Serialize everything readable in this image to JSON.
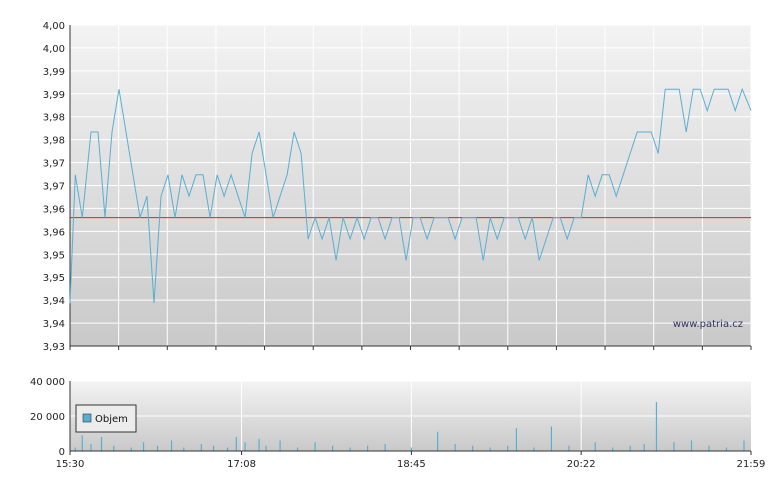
{
  "watermark": "www.patria.cz",
  "colors": {
    "price_line": "#5aaed4",
    "reference_line": "#dd2222",
    "volume_bar": "#5aaed4",
    "grid": "#ffffff",
    "plot_bg_top": "#f2f2f2",
    "plot_bg_bottom": "#c8c8c8",
    "axis": "#333333"
  },
  "chart_data": [
    {
      "type": "line",
      "name": "price",
      "y_tick_labels": [
        "3,93",
        "3,94",
        "3,94",
        "3,95",
        "3,95",
        "3,96",
        "3,96",
        "3,97",
        "3,97",
        "3,98",
        "3,98",
        "3,99",
        "3,99",
        "4,00",
        "4,00"
      ],
      "ylim": [
        3.93,
        4.005
      ],
      "reference_value": 3.96,
      "x_tick_labels": [
        "15:30",
        "17:08",
        "18:45",
        "20:22",
        "21:59"
      ],
      "x_range": [
        "15:30",
        "21:59"
      ],
      "x": [
        "15:30",
        "15:33",
        "15:37",
        "15:42",
        "15:46",
        "15:50",
        "15:54",
        "15:58",
        "16:02",
        "16:06",
        "16:10",
        "16:14",
        "16:18",
        "16:22",
        "16:26",
        "16:30",
        "16:34",
        "16:38",
        "16:42",
        "16:46",
        "16:50",
        "16:54",
        "16:58",
        "17:02",
        "17:06",
        "17:10",
        "17:14",
        "17:18",
        "17:22",
        "17:26",
        "17:30",
        "17:34",
        "17:38",
        "17:42",
        "17:46",
        "17:50",
        "17:54",
        "17:58",
        "18:02",
        "18:06",
        "18:10",
        "18:14",
        "18:18",
        "18:22",
        "18:26",
        "18:30",
        "18:34",
        "18:38",
        "18:42",
        "18:46",
        "18:50",
        "18:54",
        "18:58",
        "19:02",
        "19:06",
        "19:10",
        "19:14",
        "19:18",
        "19:22",
        "19:26",
        "19:30",
        "19:34",
        "19:38",
        "19:42",
        "19:46",
        "19:50",
        "19:54",
        "19:58",
        "20:02",
        "20:06",
        "20:10",
        "20:14",
        "20:18",
        "20:22",
        "20:26",
        "20:30",
        "20:34",
        "20:38",
        "20:42",
        "20:46",
        "20:50",
        "20:54",
        "20:58",
        "21:02",
        "21:06",
        "21:10",
        "21:14",
        "21:18",
        "21:22",
        "21:26",
        "21:30",
        "21:34",
        "21:38",
        "21:42",
        "21:46",
        "21:50",
        "21:54",
        "21:59"
      ],
      "values": [
        3.94,
        3.97,
        3.96,
        3.98,
        3.98,
        3.96,
        3.98,
        3.99,
        3.98,
        3.97,
        3.96,
        3.965,
        3.94,
        3.965,
        3.97,
        3.96,
        3.97,
        3.965,
        3.97,
        3.97,
        3.96,
        3.97,
        3.965,
        3.97,
        3.965,
        3.96,
        3.975,
        3.98,
        3.97,
        3.96,
        3.965,
        3.97,
        3.98,
        3.975,
        3.955,
        3.96,
        3.955,
        3.96,
        3.95,
        3.96,
        3.955,
        3.96,
        3.955,
        3.96,
        3.96,
        3.955,
        3.96,
        3.96,
        3.95,
        3.96,
        3.96,
        3.955,
        3.96,
        3.96,
        3.96,
        3.955,
        3.96,
        3.96,
        3.96,
        3.95,
        3.96,
        3.955,
        3.96,
        3.96,
        3.96,
        3.955,
        3.96,
        3.95,
        3.955,
        3.96,
        3.96,
        3.955,
        3.96,
        3.96,
        3.97,
        3.965,
        3.97,
        3.97,
        3.965,
        3.97,
        3.975,
        3.98,
        3.98,
        3.98,
        3.975,
        3.99,
        3.99,
        3.99,
        3.98,
        3.99,
        3.99,
        3.985,
        3.99,
        3.99,
        3.99,
        3.985,
        3.99,
        3.985
      ]
    },
    {
      "type": "bar",
      "name": "Objem",
      "y_tick_labels": [
        "0",
        "20 000",
        "40 000"
      ],
      "ylim": [
        0,
        40000
      ],
      "x_tick_labels": [
        "15:30",
        "17:08",
        "18:45",
        "20:22",
        "21:59"
      ],
      "legend": "Objem",
      "legend_position": "left",
      "x": [
        "15:33",
        "15:37",
        "15:42",
        "15:48",
        "15:55",
        "16:05",
        "16:12",
        "16:20",
        "16:28",
        "16:35",
        "16:45",
        "16:52",
        "17:00",
        "17:05",
        "17:10",
        "17:18",
        "17:22",
        "17:30",
        "17:40",
        "17:50",
        "18:00",
        "18:10",
        "18:20",
        "18:30",
        "18:45",
        "19:00",
        "19:10",
        "19:20",
        "19:30",
        "19:40",
        "19:45",
        "19:55",
        "20:05",
        "20:15",
        "20:30",
        "20:40",
        "20:50",
        "20:58",
        "21:05",
        "21:15",
        "21:25",
        "21:35",
        "21:45",
        "21:55"
      ],
      "values": [
        2000,
        9000,
        4000,
        8000,
        3000,
        2000,
        5000,
        3000,
        6000,
        2000,
        4000,
        3000,
        2000,
        8000,
        5000,
        7000,
        3000,
        6000,
        2000,
        5000,
        3000,
        2000,
        3000,
        4000,
        2000,
        11000,
        4000,
        3000,
        2000,
        3000,
        13000,
        2000,
        14000,
        3000,
        5000,
        2000,
        3000,
        4000,
        28000,
        5000,
        6000,
        3000,
        2000,
        6000
      ]
    }
  ]
}
